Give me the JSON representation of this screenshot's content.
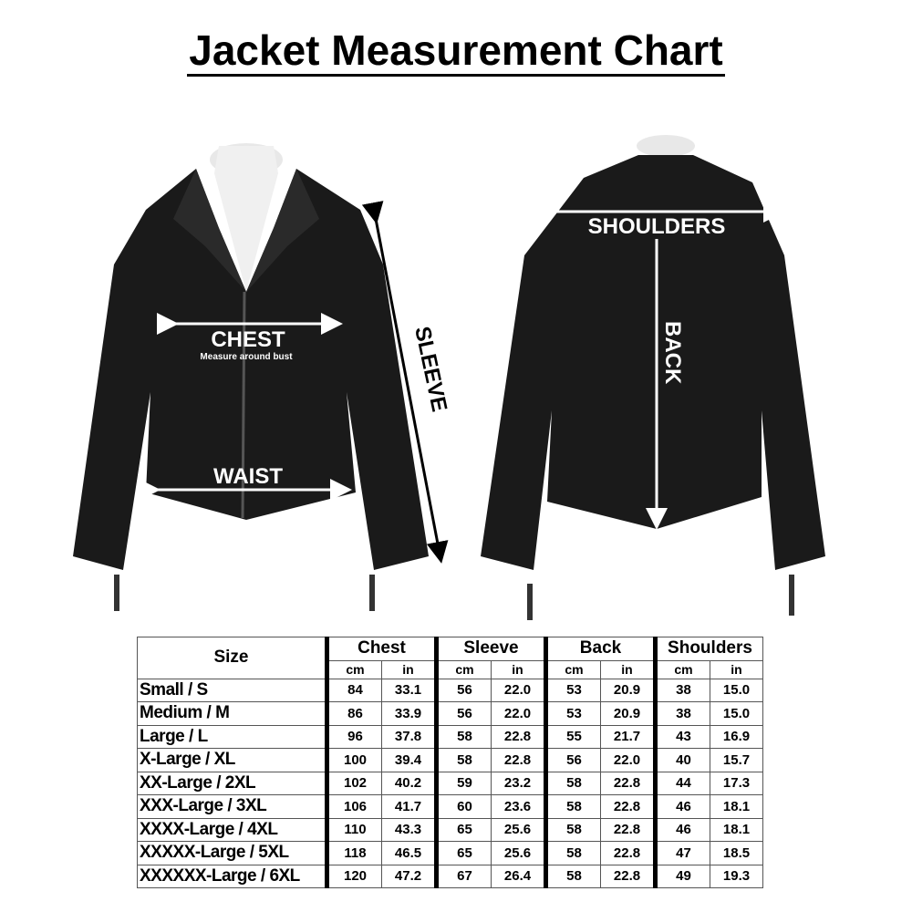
{
  "title": "Jacket Measurement Chart",
  "labels": {
    "chest": "CHEST",
    "chest_note": "Measure around bust",
    "waist": "WAIST",
    "sleeve": "SLEEVE",
    "shoulders": "SHOULDERS",
    "back": "BACK"
  },
  "table": {
    "size_header": "Size",
    "groups": [
      "Chest",
      "Sleeve",
      "Back",
      "Shoulders"
    ],
    "units": [
      "cm",
      "in"
    ],
    "rows": [
      {
        "size": "Small / S",
        "v": [
          "84",
          "33.1",
          "56",
          "22.0",
          "53",
          "20.9",
          "38",
          "15.0"
        ]
      },
      {
        "size": "Medium / M",
        "v": [
          "86",
          "33.9",
          "56",
          "22.0",
          "53",
          "20.9",
          "38",
          "15.0"
        ]
      },
      {
        "size": "Large / L",
        "v": [
          "96",
          "37.8",
          "58",
          "22.8",
          "55",
          "21.7",
          "43",
          "16.9"
        ]
      },
      {
        "size": "X-Large / XL",
        "v": [
          "100",
          "39.4",
          "58",
          "22.8",
          "56",
          "22.0",
          "40",
          "15.7"
        ]
      },
      {
        "size": "XX-Large / 2XL",
        "v": [
          "102",
          "40.2",
          "59",
          "23.2",
          "58",
          "22.8",
          "44",
          "17.3"
        ]
      },
      {
        "size": "XXX-Large / 3XL",
        "v": [
          "106",
          "41.7",
          "60",
          "23.6",
          "58",
          "22.8",
          "46",
          "18.1"
        ]
      },
      {
        "size": "XXXX-Large / 4XL",
        "v": [
          "110",
          "43.3",
          "65",
          "25.6",
          "58",
          "22.8",
          "46",
          "18.1"
        ]
      },
      {
        "size": "XXXXX-Large / 5XL",
        "v": [
          "118",
          "46.5",
          "65",
          "25.6",
          "58",
          "22.8",
          "47",
          "18.5"
        ]
      },
      {
        "size": "XXXXXX-Large / 6XL",
        "v": [
          "120",
          "47.2",
          "67",
          "26.4",
          "58",
          "22.8",
          "49",
          "19.3"
        ]
      }
    ]
  }
}
